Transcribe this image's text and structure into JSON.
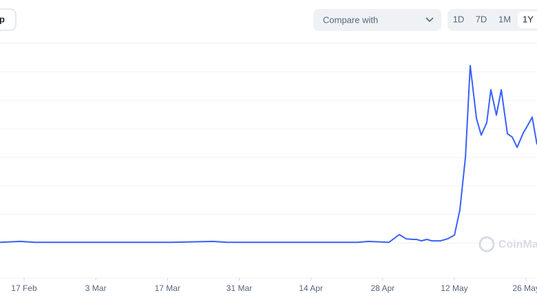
{
  "controls": {
    "left_button": "p",
    "compare": "Compare with",
    "ranges": [
      "1D",
      "7D",
      "1M",
      "1Y"
    ],
    "selected_range": 3
  },
  "chart_data": {
    "type": "line",
    "watermark": "CoinMarketCap",
    "x": [
      -4.7,
      -0.67,
      2.02,
      28.9,
      36.96,
      39.65,
      65.19,
      67.2,
      71.24,
      73.25,
      74.6,
      75.94,
      76.61,
      77.55,
      78.63,
      79.57,
      81.32,
      82.66,
      84.01,
      85.08,
      86.16,
      87.1,
      88.31,
      89.25,
      90.32,
      91.13,
      92.2,
      93.15,
      94.35,
      95.3,
      96.24,
      97.45,
      98.25,
      99.19,
      100.13
    ],
    "series": [
      {
        "color": "#3861fb",
        "values": [
          0.02,
          0.05,
          0.02,
          0.02,
          0.05,
          0.02,
          0.02,
          0.05,
          0.02,
          0.29,
          0.14,
          0.12,
          0.12,
          0.07,
          0.12,
          0.07,
          0.07,
          0.14,
          0.27,
          1.16,
          3.01,
          6.22,
          4.36,
          3.78,
          4.22,
          5.37,
          4.48,
          5.37,
          3.83,
          3.71,
          3.35,
          3.86,
          4.1,
          4.41,
          3.45
        ]
      }
    ],
    "xlim": [
      -4.7,
      100.13
    ],
    "xticks": [
      {
        "value": 0,
        "label": "17 Feb"
      },
      {
        "value": 14,
        "label": "3 Mar"
      },
      {
        "value": 28,
        "label": "17 Mar"
      },
      {
        "value": 42,
        "label": "31 Mar"
      },
      {
        "value": 56,
        "label": "14 Apr"
      },
      {
        "value": 70,
        "label": "28 Apr"
      },
      {
        "value": 84,
        "label": "12 May"
      },
      {
        "value": 98,
        "label": "26 May"
      }
    ],
    "ylim": [
      0,
      7
    ],
    "yticks": [
      0,
      1,
      2,
      3,
      4,
      5,
      6,
      7
    ],
    "grid": true
  }
}
